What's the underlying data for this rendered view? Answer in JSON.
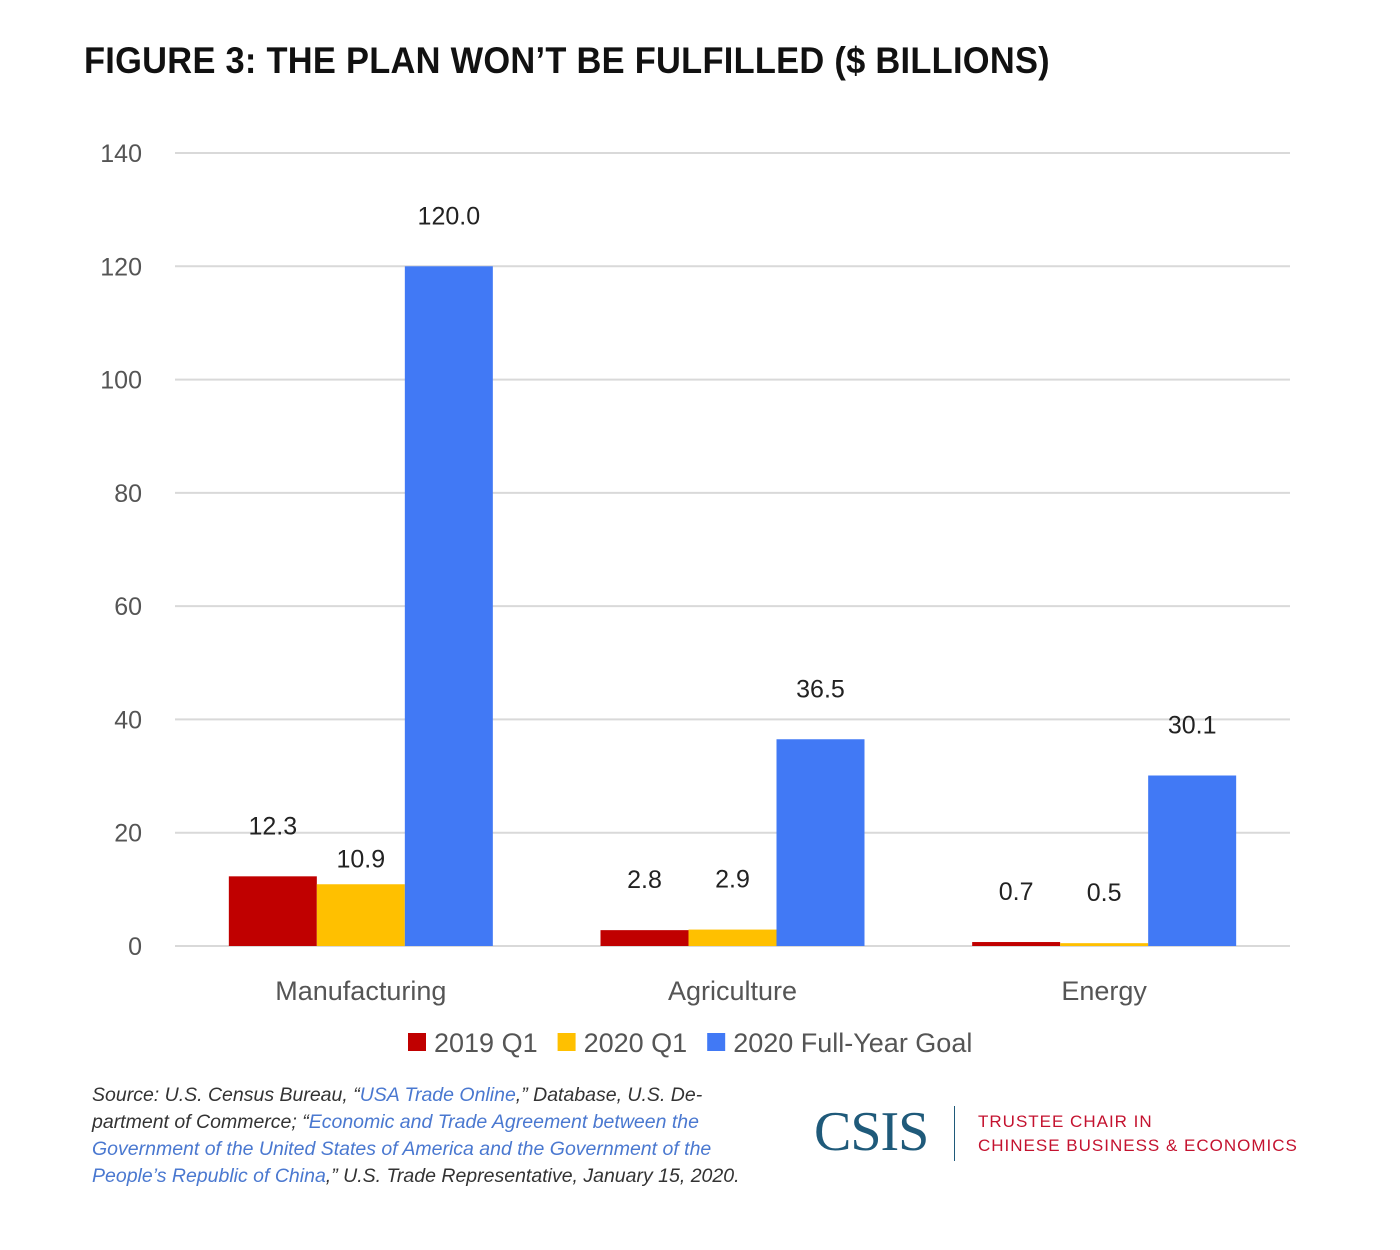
{
  "title": "FIGURE 3: THE PLAN WON’T BE FULFILLED ($ BILLIONS)",
  "chart_data": {
    "type": "bar",
    "title": "FIGURE 3: THE PLAN WON’T BE FULFILLED ($ BILLIONS)",
    "categories": [
      "Manufacturing",
      "Agriculture",
      "Energy"
    ],
    "series": [
      {
        "name": "2019 Q1",
        "color": "#c00000",
        "values": [
          12.3,
          2.8,
          0.7
        ],
        "labels": [
          "12.3",
          "2.8",
          "0.7"
        ]
      },
      {
        "name": "2020 Q1",
        "color": "#ffc000",
        "values": [
          10.9,
          2.9,
          0.5
        ],
        "labels": [
          "10.9",
          "2.9",
          "0.5"
        ]
      },
      {
        "name": "2020 Full-Year Goal",
        "color": "#4179f5",
        "values": [
          120.0,
          36.5,
          30.1
        ],
        "labels": [
          "120.0",
          "36.5",
          "30.1"
        ]
      }
    ],
    "ylim": [
      0,
      140
    ],
    "yticks": [
      "0",
      "20",
      "40",
      "60",
      "80",
      "100",
      "120",
      "140"
    ],
    "grid": true,
    "legend": "bottom"
  },
  "source": [
    {
      "text": "Source: U.S. Census Bureau, “",
      "link": false
    },
    {
      "text": "USA Trade Online",
      "link": true
    },
    {
      "text": ",” Database, U.S. De-partment of Commerce; “",
      "link": false
    },
    {
      "text": "Economic and Trade Agreement between the Government of the United States of America and the Government of the People’s Republic of China",
      "link": true
    },
    {
      "text": ",” U.S. Trade Representative, January 15, 2020.",
      "link": false
    }
  ],
  "logo": {
    "text": "CSIS",
    "line1": "TRUSTEE CHAIR IN",
    "line2": "CHINESE BUSINESS & ECONOMICS"
  }
}
